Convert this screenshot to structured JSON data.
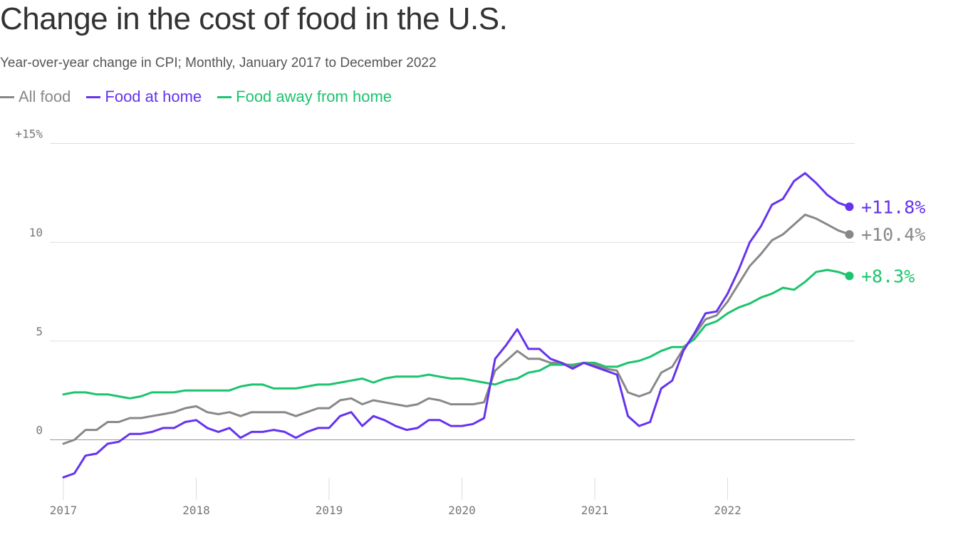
{
  "title": "Change in the cost of food in the U.S.",
  "subtitle": "Year-over-year change in CPI; Monthly, January 2017 to December 2022",
  "colors": {
    "all_food": "#888888",
    "food_at_home": "#6533ee",
    "food_away": "#1bc46d",
    "grid": "#dddddd",
    "zero": "#999999",
    "text": "#333333"
  },
  "chart_data": {
    "type": "line",
    "title": "Change in the cost of food in the U.S.",
    "subtitle": "Year-over-year change in CPI; Monthly, January 2017 to December 2022",
    "x_start": "2017-01",
    "x_end": "2022-12",
    "x_tick_labels": [
      "2017",
      "2018",
      "2019",
      "2020",
      "2021",
      "2022"
    ],
    "y_tick_labels": [
      "+15%",
      "10",
      "5",
      "0"
    ],
    "y_ticks": [
      15,
      10,
      5,
      0
    ],
    "ylim": [
      -2.5,
      15
    ],
    "grid": true,
    "legend_position": "top-left",
    "series": [
      {
        "name": "All food",
        "key": "all_food",
        "end_label": "+10.4%",
        "values": [
          -0.2,
          0.0,
          0.5,
          0.5,
          0.9,
          0.9,
          1.1,
          1.1,
          1.2,
          1.3,
          1.4,
          1.6,
          1.7,
          1.4,
          1.3,
          1.4,
          1.2,
          1.4,
          1.4,
          1.4,
          1.4,
          1.2,
          1.4,
          1.6,
          1.6,
          2.0,
          2.1,
          1.8,
          2.0,
          1.9,
          1.8,
          1.7,
          1.8,
          2.1,
          2.0,
          1.8,
          1.8,
          1.8,
          1.9,
          3.5,
          4.0,
          4.5,
          4.1,
          4.1,
          3.9,
          3.9,
          3.7,
          3.9,
          3.8,
          3.6,
          3.5,
          2.4,
          2.2,
          2.4,
          3.4,
          3.7,
          4.6,
          5.3,
          6.1,
          6.3,
          7.0,
          7.9,
          8.8,
          9.4,
          10.1,
          10.4,
          10.9,
          11.4,
          11.2,
          10.9,
          10.6,
          10.4
        ]
      },
      {
        "name": "Food at home",
        "key": "food_at_home",
        "end_label": "+11.8%",
        "values": [
          -1.9,
          -1.7,
          -0.8,
          -0.7,
          -0.2,
          -0.1,
          0.3,
          0.3,
          0.4,
          0.6,
          0.6,
          0.9,
          1.0,
          0.6,
          0.4,
          0.6,
          0.1,
          0.4,
          0.4,
          0.5,
          0.4,
          0.1,
          0.4,
          0.6,
          0.6,
          1.2,
          1.4,
          0.7,
          1.2,
          1.0,
          0.7,
          0.5,
          0.6,
          1.0,
          1.0,
          0.7,
          0.7,
          0.8,
          1.1,
          4.1,
          4.8,
          5.6,
          4.6,
          4.6,
          4.1,
          3.9,
          3.6,
          3.9,
          3.7,
          3.5,
          3.3,
          1.2,
          0.7,
          0.9,
          2.6,
          3.0,
          4.5,
          5.4,
          6.4,
          6.5,
          7.4,
          8.6,
          10.0,
          10.8,
          11.9,
          12.2,
          13.1,
          13.5,
          13.0,
          12.4,
          12.0,
          11.8
        ]
      },
      {
        "name": "Food away from home",
        "key": "food_away",
        "end_label": "+8.3%",
        "values": [
          2.3,
          2.4,
          2.4,
          2.3,
          2.3,
          2.2,
          2.1,
          2.2,
          2.4,
          2.4,
          2.4,
          2.5,
          2.5,
          2.5,
          2.5,
          2.5,
          2.7,
          2.8,
          2.8,
          2.6,
          2.6,
          2.6,
          2.7,
          2.8,
          2.8,
          2.9,
          3.0,
          3.1,
          2.9,
          3.1,
          3.2,
          3.2,
          3.2,
          3.3,
          3.2,
          3.1,
          3.1,
          3.0,
          2.9,
          2.8,
          3.0,
          3.1,
          3.4,
          3.5,
          3.8,
          3.8,
          3.8,
          3.9,
          3.9,
          3.7,
          3.7,
          3.9,
          4.0,
          4.2,
          4.5,
          4.7,
          4.7,
          5.1,
          5.8,
          6.0,
          6.4,
          6.7,
          6.9,
          7.2,
          7.4,
          7.7,
          7.6,
          8.0,
          8.5,
          8.6,
          8.5,
          8.3
        ]
      }
    ]
  }
}
